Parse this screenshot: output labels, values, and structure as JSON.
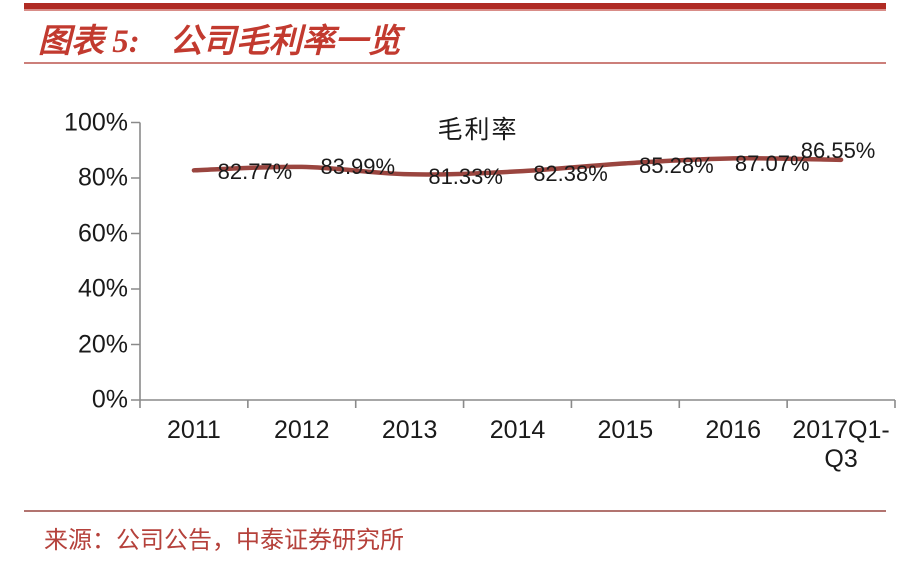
{
  "header": {
    "label": "图表 5:",
    "title": "公司毛利率一览"
  },
  "chart_data": {
    "type": "line",
    "title": "毛利率",
    "categories": [
      "2011",
      "2012",
      "2013",
      "2014",
      "2015",
      "2016",
      "2017Q1-\nQ3"
    ],
    "values": [
      82.77,
      83.99,
      81.33,
      82.38,
      85.28,
      87.07,
      86.55
    ],
    "point_labels": [
      "82.77%",
      "83.99%",
      "81.33%",
      "82.38%",
      "85.28%",
      "87.07%",
      "86.55%"
    ],
    "y_tick_labels": [
      "0%",
      "20%",
      "40%",
      "60%",
      "80%",
      "100%"
    ],
    "ylim": [
      0,
      100
    ],
    "xlabel": "",
    "ylabel": "",
    "grid": false,
    "legend_position": "none",
    "line_color": "#9a453f"
  },
  "footer": {
    "source": "来源：公司公告，中泰证券研究所"
  },
  "colors": {
    "header_bar": "#b02b24",
    "header_text": "#c23a2f",
    "header_rule": "#cc7f7a",
    "axis": "#8a8a8a",
    "data_label_text": "#1a1a1a",
    "footer_rule": "#b27470",
    "footer_text": "#b5413b"
  }
}
